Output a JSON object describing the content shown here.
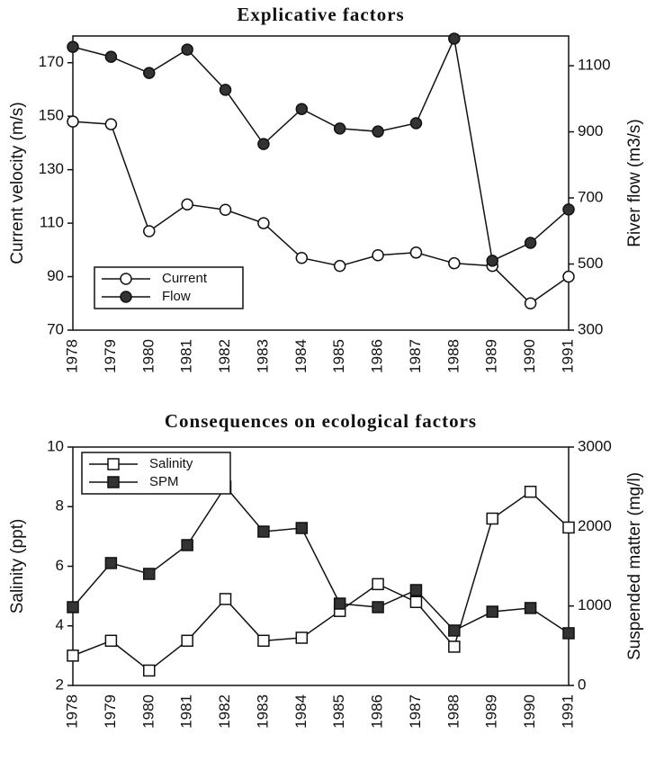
{
  "chart_data": [
    {
      "type": "line",
      "title": "Explicative factors",
      "categories": [
        "1978",
        "1979",
        "1980",
        "1981",
        "1982",
        "1983",
        "1984",
        "1985",
        "1986",
        "1987",
        "1988",
        "1989",
        "1990",
        "1991"
      ],
      "ylabel": "Current velocity (m/s)",
      "y2label": "River flow (m3/s)",
      "ylim": [
        70,
        180
      ],
      "yticks": [
        70,
        90,
        110,
        130,
        150,
        170
      ],
      "y2lim": [
        300,
        1190
      ],
      "y2ticks": [
        300,
        500,
        700,
        900,
        1100
      ],
      "legend": "lower left",
      "series": [
        {
          "name": "Current",
          "color": "#111111",
          "marker": "circle",
          "marker_fill": "#ffffff",
          "values": [
            148,
            147,
            107,
            117,
            115,
            110,
            97,
            94,
            98,
            99,
            95,
            94,
            80,
            90
          ]
        },
        {
          "name": "Flow",
          "color": "#111111",
          "marker": "circle",
          "marker_fill": "#333333",
          "axis": "y2",
          "values": [
            1157,
            1127,
            1078,
            1149,
            1027,
            863,
            969,
            910,
            901,
            926,
            1182,
            510,
            564,
            665
          ]
        }
      ]
    },
    {
      "type": "line",
      "title": "Consequences on ecological factors",
      "categories": [
        "1978",
        "1979",
        "1980",
        "1981",
        "1982",
        "1983",
        "1984",
        "1985",
        "1986",
        "1987",
        "1988",
        "1989",
        "1990",
        "1991"
      ],
      "ylabel": "Salinity (ppt)",
      "y2label": "Suspended matter (mg/l)",
      "ylim": [
        2,
        10
      ],
      "yticks": [
        2,
        4,
        6,
        8,
        10
      ],
      "y2lim": [
        0,
        3000
      ],
      "y2ticks": [
        0,
        1000,
        2000,
        3000
      ],
      "legend": "upper left",
      "series": [
        {
          "name": "Salinity",
          "color": "#111111",
          "marker": "square",
          "marker_fill": "#ffffff",
          "values": [
            3.0,
            3.5,
            2.5,
            3.5,
            4.9,
            3.5,
            3.6,
            4.5,
            5.4,
            4.8,
            3.3,
            7.6,
            8.5,
            7.3
          ]
        },
        {
          "name": "SPM",
          "color": "#111111",
          "marker": "square",
          "marker_fill": "#333333",
          "axis": "y2",
          "values": [
            985,
            1540,
            1404,
            1766,
            2502,
            1936,
            1981,
            1030,
            985,
            1200,
            691,
            928,
            974,
            657
          ]
        }
      ]
    }
  ]
}
